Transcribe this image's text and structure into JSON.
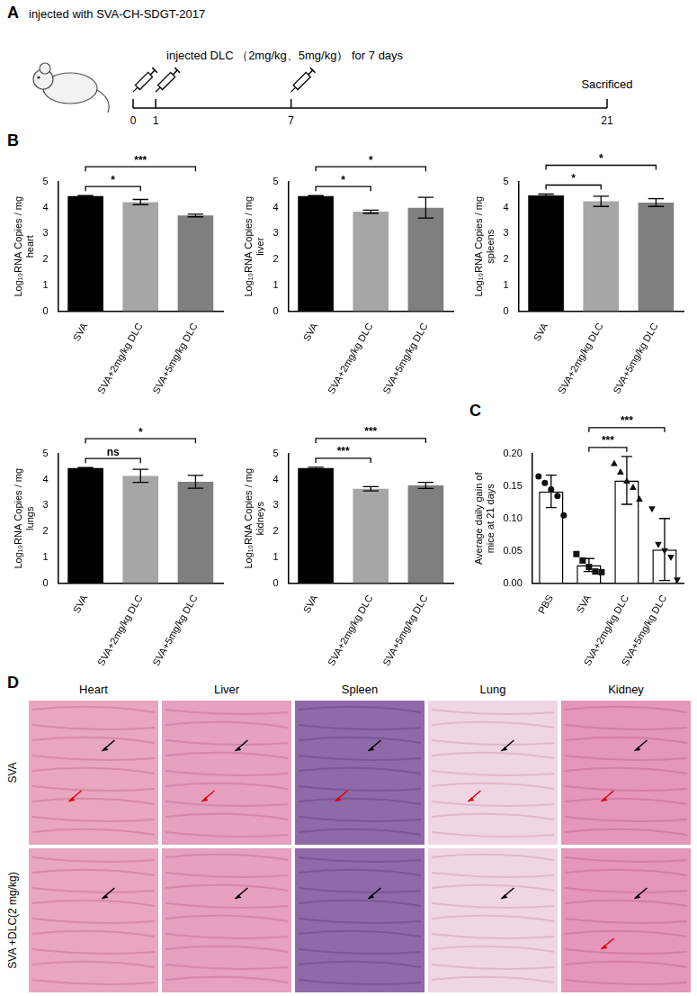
{
  "letters": [
    "A",
    "B",
    "C",
    "D"
  ],
  "timeline": {
    "days": [
      0,
      1,
      7,
      21
    ],
    "injections": [
      0,
      1,
      7
    ],
    "events": [
      {
        "day": 0,
        "label": "injected with SVA-CH-SDGT-2017"
      },
      {
        "day": 1,
        "label": "injected DLC （2mg/kg、5mg/kg） for 7 days"
      },
      {
        "day": 21,
        "label": "Sacrificed"
      }
    ]
  },
  "chart_data": [
    {
      "type": "bar",
      "y_label": "Log₁₀RNA Copies / mg heart",
      "categories": [
        "SVA",
        "SVA+2mg/kg DLC",
        "SVA+5mg/kg DLC"
      ],
      "values": [
        4.45,
        4.22,
        3.7
      ],
      "errors": [
        0.02,
        0.1,
        0.05
      ],
      "colors": [
        "#000000",
        "#a6a6a6",
        "#7f7f7f"
      ],
      "ylim": [
        0,
        5
      ],
      "yticks": [
        0,
        1,
        2,
        3,
        4,
        5
      ],
      "grid": false,
      "comparisons": [
        {
          "from": "SVA",
          "to": "SVA+2mg/kg DLC",
          "label": "*"
        },
        {
          "from": "SVA",
          "to": "SVA+5mg/kg DLC",
          "label": "***"
        }
      ]
    },
    {
      "type": "bar",
      "y_label": "Log₁₀RNA Copies / mg liver",
      "categories": [
        "SVA",
        "SVA+2mg/kg DLC",
        "SVA+5mg/kg DLC"
      ],
      "values": [
        4.45,
        3.85,
        4.0
      ],
      "errors": [
        0.02,
        0.06,
        0.4
      ],
      "colors": [
        "#000000",
        "#a6a6a6",
        "#7f7f7f"
      ],
      "ylim": [
        0,
        5
      ],
      "yticks": [
        0,
        1,
        2,
        3,
        4,
        5
      ],
      "grid": false,
      "comparisons": [
        {
          "from": "SVA",
          "to": "SVA+2mg/kg DLC",
          "label": "*"
        },
        {
          "from": "SVA",
          "to": "SVA+5mg/kg DLC",
          "label": "*"
        }
      ]
    },
    {
      "type": "bar",
      "y_label": "Log₁₀RNA Copies / mg spleens",
      "categories": [
        "SVA",
        "SVA+2mg/kg DLC",
        "SVA+5mg/kg DLC"
      ],
      "values": [
        4.48,
        4.25,
        4.2
      ],
      "errors": [
        0.05,
        0.2,
        0.15
      ],
      "colors": [
        "#000000",
        "#a6a6a6",
        "#7f7f7f"
      ],
      "ylim": [
        0,
        5
      ],
      "yticks": [
        0,
        1,
        2,
        3,
        4,
        5
      ],
      "grid": false,
      "comparisons": [
        {
          "from": "SVA",
          "to": "SVA+2mg/kg DLC",
          "label": "*"
        },
        {
          "from": "SVA",
          "to": "SVA+5mg/kg DLC",
          "label": "*"
        }
      ]
    },
    {
      "type": "bar",
      "y_label": "Log₁₀RNA Copies / mg lungs",
      "categories": [
        "SVA",
        "SVA+2mg/kg DLC",
        "SVA+5mg/kg DLC"
      ],
      "values": [
        4.45,
        4.15,
        3.92
      ],
      "errors": [
        0.02,
        0.25,
        0.25
      ],
      "colors": [
        "#000000",
        "#a6a6a6",
        "#7f7f7f"
      ],
      "ylim": [
        0,
        5
      ],
      "yticks": [
        0,
        1,
        2,
        3,
        4,
        5
      ],
      "grid": false,
      "comparisons": [
        {
          "from": "SVA",
          "to": "SVA+2mg/kg DLC",
          "label": "ns"
        },
        {
          "from": "SVA",
          "to": "SVA+5mg/kg DLC",
          "label": "*"
        }
      ]
    },
    {
      "type": "bar",
      "y_label": "Log₁₀RNA Copies / mg kidneys",
      "categories": [
        "SVA",
        "SVA+2mg/kg DLC",
        "SVA+5mg/kg DLC"
      ],
      "values": [
        4.45,
        3.65,
        3.78
      ],
      "errors": [
        0.03,
        0.08,
        0.12
      ],
      "colors": [
        "#000000",
        "#a6a6a6",
        "#7f7f7f"
      ],
      "ylim": [
        0,
        5
      ],
      "yticks": [
        0,
        1,
        2,
        3,
        4,
        5
      ],
      "grid": false,
      "comparisons": [
        {
          "from": "SVA",
          "to": "SVA+2mg/kg DLC",
          "label": "***"
        },
        {
          "from": "SVA",
          "to": "SVA+5mg/kg DLC",
          "label": "***"
        }
      ]
    },
    {
      "type": "bar",
      "y_label": "Average daily gain of mice at 21 days",
      "categories": [
        "PBS",
        "SVA",
        "SVA+2mg/kg DLC",
        "SVA+5mg/kg DLC"
      ],
      "values": [
        0.142,
        0.028,
        0.159,
        0.052
      ],
      "errors": [
        0.025,
        0.01,
        0.037,
        0.048
      ],
      "color": "#ffffff",
      "ylim": [
        0,
        0.2
      ],
      "yticks": [
        {
          "value": 0,
          "label": "0.00"
        },
        {
          "value": 0.05,
          "label": "0.05"
        },
        {
          "value": 0.1,
          "label": "0.10"
        },
        {
          "value": 0.15,
          "label": "0.15"
        },
        {
          "value": 0.2,
          "label": "0.20"
        }
      ],
      "grid": false,
      "points": [
        {
          "category": "PBS",
          "marker": "circle",
          "values": [
            0.165,
            0.155,
            0.145,
            0.135,
            0.105
          ]
        },
        {
          "category": "SVA",
          "marker": "square",
          "values": [
            0.045,
            0.035,
            0.025,
            0.018,
            0.017
          ]
        },
        {
          "category": "SVA+2mg/kg DLC",
          "marker": "triangle",
          "values": [
            0.185,
            0.172,
            0.158,
            0.148,
            0.13
          ]
        },
        {
          "category": "SVA+5mg/kg DLC",
          "marker": "triangle_down",
          "values": [
            0.115,
            0.06,
            0.05,
            0.04,
            0.005
          ]
        }
      ],
      "comparisons": [
        {
          "from": "SVA",
          "to": "SVA+2mg/kg DLC",
          "label": "***"
        },
        {
          "from": "SVA",
          "to": "SVA+5mg/kg DLC",
          "label": "***"
        }
      ]
    }
  ],
  "histology": {
    "columns": [
      "Heart",
      "Liver",
      "Spleen",
      "Lung",
      "Kidney"
    ],
    "rows": [
      "SVA",
      "SVA +DLC(2 mg/kg)"
    ]
  }
}
